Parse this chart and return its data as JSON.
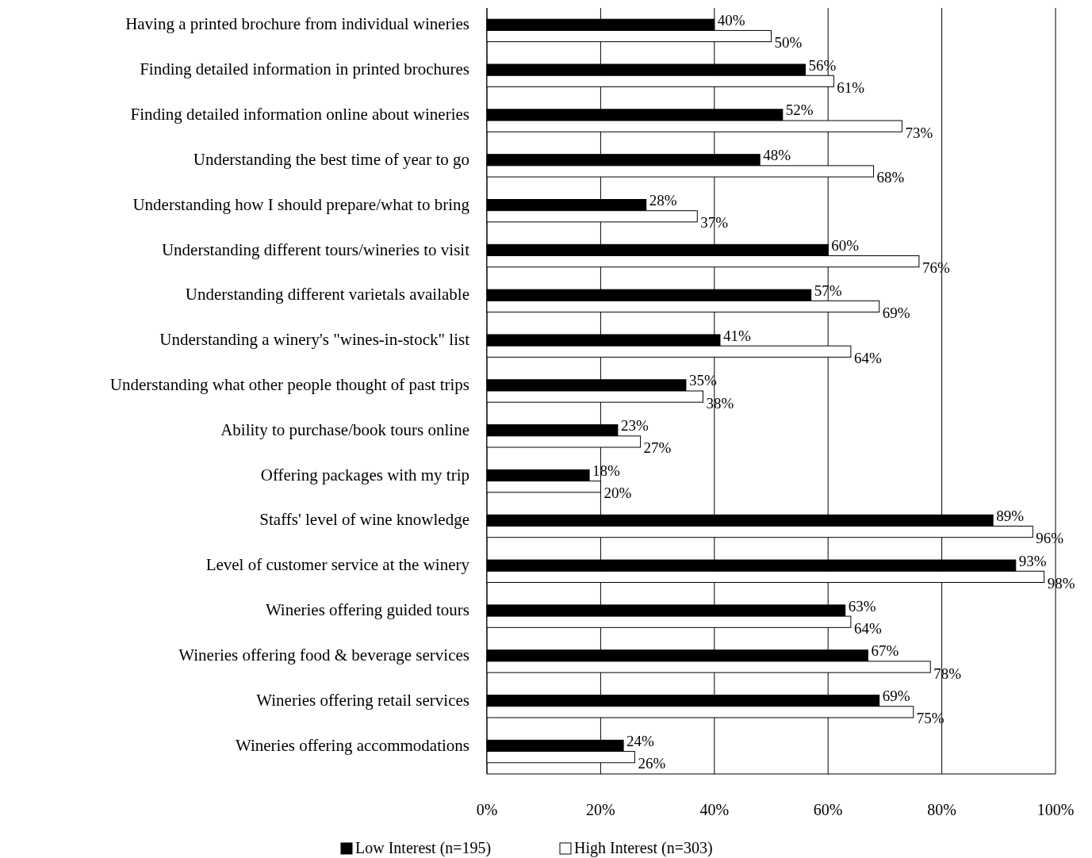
{
  "chart_data": {
    "type": "bar",
    "orientation": "horizontal",
    "categories": [
      "Having a printed brochure from individual wineries",
      "Finding detailed information in printed brochures",
      "Finding detailed information online about wineries",
      "Understanding the best time of year to go",
      "Understanding how I should prepare/what to bring",
      "Understanding different tours/wineries to visit",
      "Understanding different varietals available",
      "Understanding a winery's \"wines-in-stock\" list",
      "Understanding what other people thought of past trips",
      "Ability to purchase/book tours online",
      "Offering packages with my trip",
      "Staffs' level of wine knowledge",
      "Level of customer service at the winery",
      "Wineries offering guided tours",
      "Wineries offering food & beverage services",
      "Wineries offering retail services",
      "Wineries offering accommodations"
    ],
    "series": [
      {
        "name": "Low Interest (n=195)",
        "color": "#000000",
        "values": [
          40,
          56,
          52,
          48,
          28,
          60,
          57,
          41,
          35,
          23,
          18,
          89,
          93,
          63,
          67,
          69,
          24
        ],
        "value_labels": [
          "40%",
          "56%",
          "52%",
          "48%",
          "28%",
          "60%",
          "57%",
          "41%",
          "35%",
          "23%",
          "18%",
          "89%",
          "93%",
          "63%",
          "67%",
          "69%",
          "24%"
        ]
      },
      {
        "name": "High Interest (n=303)",
        "color": "#ffffff",
        "values": [
          50,
          61,
          73,
          68,
          37,
          76,
          69,
          64,
          38,
          27,
          20,
          96,
          98,
          64,
          78,
          75,
          26
        ],
        "value_labels": [
          "50%",
          "61%",
          "73%",
          "68%",
          "37%",
          "76%",
          "69%",
          "64%",
          "38%",
          "27%",
          "20%",
          "96%",
          "98%",
          "64%",
          "78%",
          "75%",
          "26%"
        ]
      }
    ],
    "xlim": [
      0,
      100
    ],
    "xticks": [
      {
        "value": 0,
        "label": "0%"
      },
      {
        "value": 20,
        "label": "20%"
      },
      {
        "value": 40,
        "label": "40%"
      },
      {
        "value": 60,
        "label": "60%"
      },
      {
        "value": 80,
        "label": "80%"
      },
      {
        "value": 100,
        "label": "100%"
      }
    ],
    "grid": "x",
    "legend": "bottom"
  }
}
